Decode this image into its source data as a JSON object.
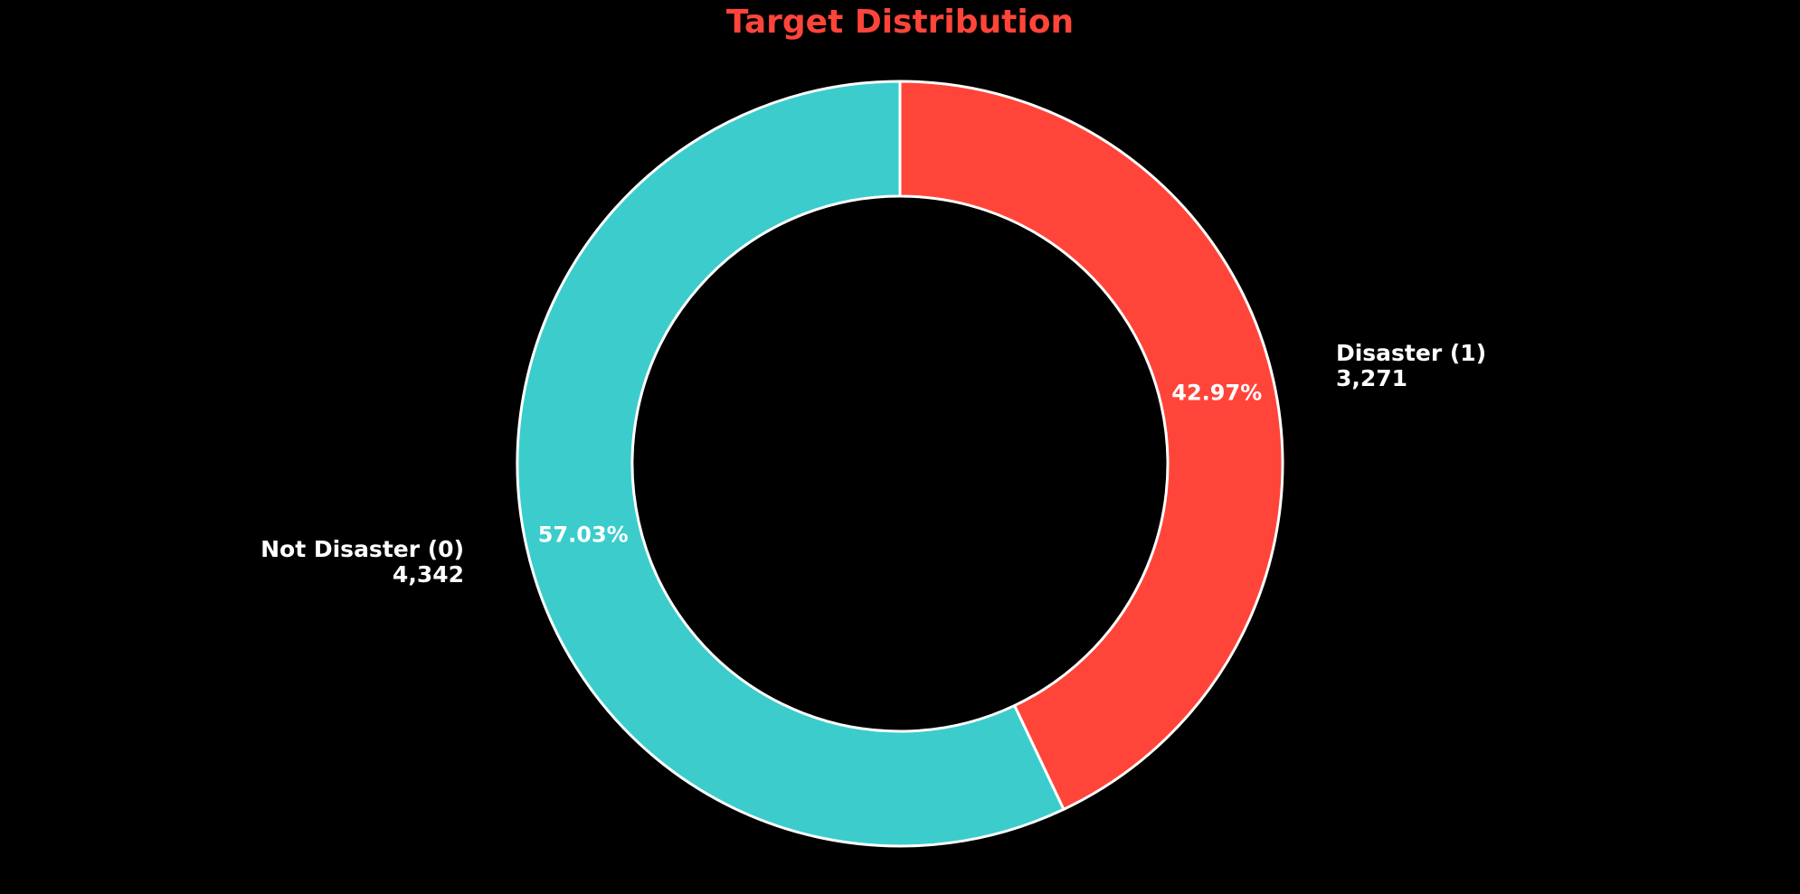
{
  "chart_data": {
    "type": "pie",
    "style": "donut",
    "title": "Target Distribution",
    "title_color": "#ff453a",
    "start": "top",
    "direction": "clockwise",
    "slices": [
      {
        "name": "Disaster (1)",
        "value": 3271,
        "value_label": "3,271",
        "percent_label": "42.97%",
        "color": "#ff453a"
      },
      {
        "name": "Not Disaster (0)",
        "value": 4342,
        "value_label": "4,342",
        "percent_label": "57.03%",
        "color": "#3ccccc"
      }
    ],
    "edge_color": "#ffffff",
    "background": "#000000"
  }
}
